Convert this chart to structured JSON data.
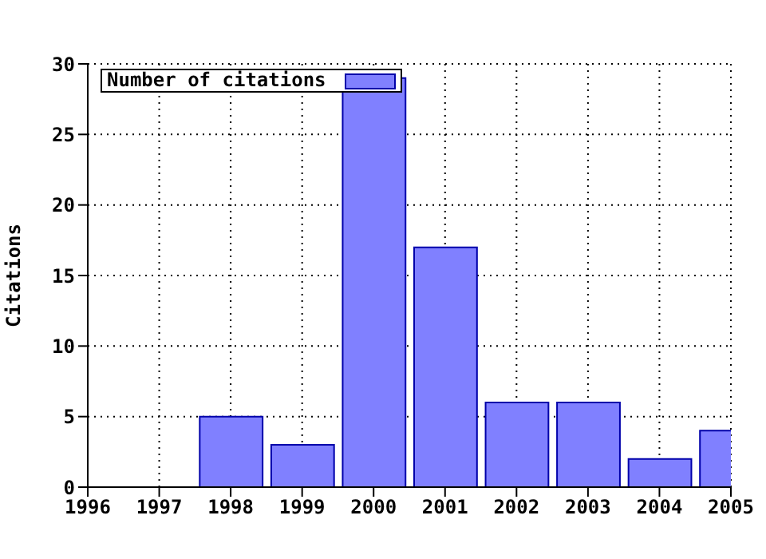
{
  "chart_data": {
    "type": "bar",
    "ylabel": "Citations",
    "x": [
      1998,
      1999,
      2000,
      2001,
      2002,
      2003,
      2004,
      2005
    ],
    "series": [
      {
        "name": "Number of citations",
        "color": "#8080ff",
        "values": [
          5,
          3,
          29,
          17,
          6,
          6,
          2,
          4
        ]
      }
    ],
    "xlim": [
      1996,
      2005
    ],
    "xticks": [
      1996,
      1997,
      1998,
      1999,
      2000,
      2001,
      2002,
      2003,
      2004,
      2005
    ],
    "ylim": [
      0,
      30
    ],
    "yticks": [
      0,
      5,
      10,
      15,
      20,
      25,
      30
    ],
    "grid": true,
    "legend": "top left"
  }
}
